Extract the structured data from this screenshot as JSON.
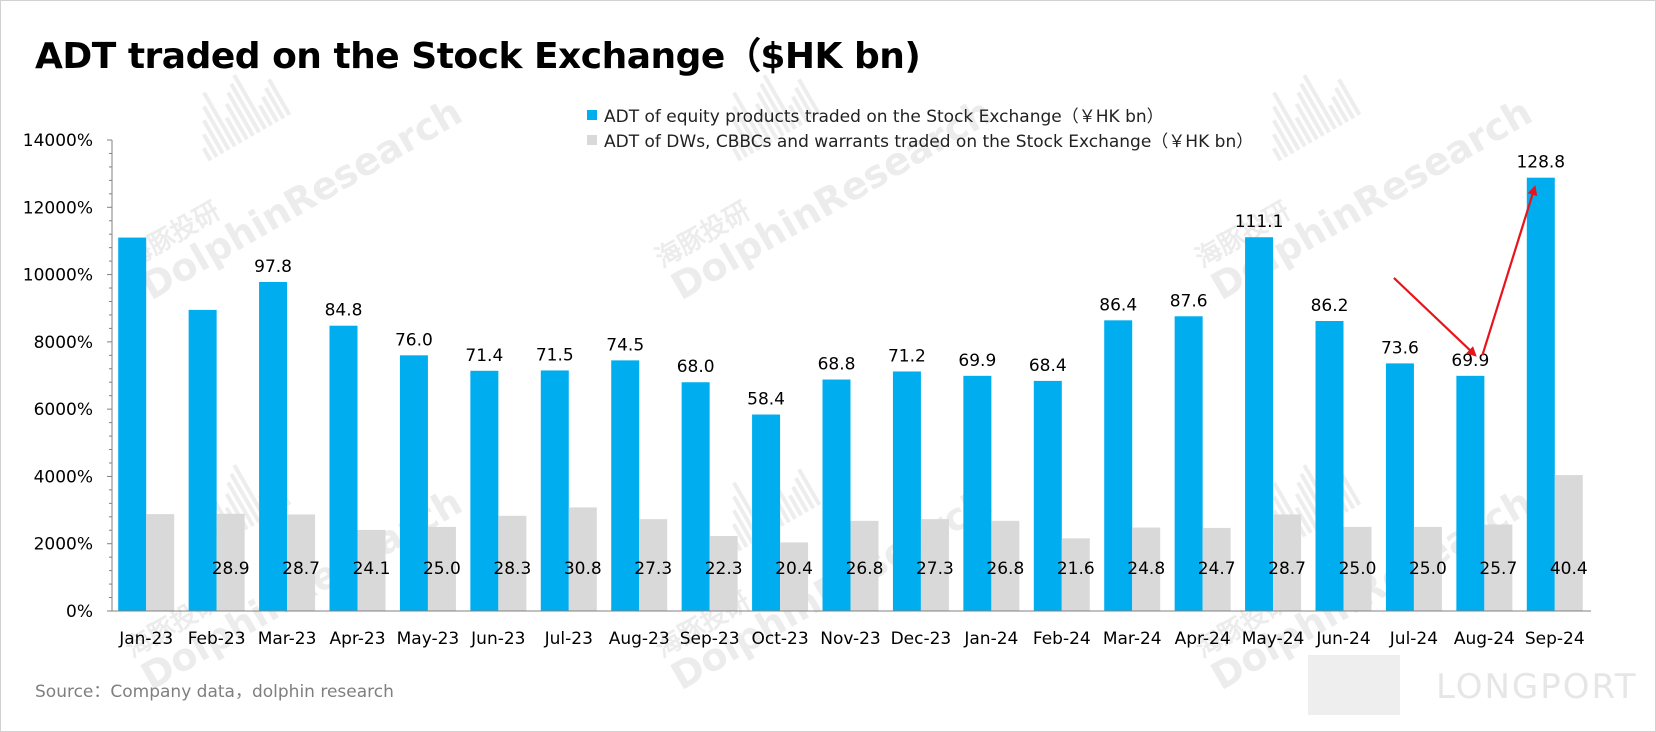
{
  "page_title": "ADT traded on the Stock Exchange（$HK bn)",
  "legend": [
    {
      "label": "ADT of equity products traded on the Stock Exchange（￥HK bn）",
      "color": "#00aeef"
    },
    {
      "label": "ADT of DWs, CBBCs and warrants traded on the Stock Exchange（￥HK bn）",
      "color": "#d9d9d9"
    }
  ],
  "source": "Source：Company data，dolphin research",
  "brand": "LONGPORT",
  "watermark": {
    "cn": "海豚投研",
    "en": "DolphinResearch"
  },
  "colors": {
    "equity": "#00aeef",
    "derivatives": "#d9d9d9",
    "annotation": "#e8141c"
  },
  "chart_data": {
    "type": "bar",
    "title": "ADT traded on the Stock Exchange（$HK bn)",
    "categories": [
      "Jan-23",
      "Feb-23",
      "Mar-23",
      "Apr-23",
      "May-23",
      "Jun-23",
      "Jul-23",
      "Aug-23",
      "Sep-23",
      "Oct-23",
      "Nov-23",
      "Dec-23",
      "Jan-24",
      "Feb-24",
      "Mar-24",
      "Apr-24",
      "May-24",
      "Jun-24",
      "Jul-24",
      "Aug-24",
      "Sep-24"
    ],
    "yticks": [
      "0%",
      "2000%",
      "4000%",
      "6000%",
      "8000%",
      "10000%",
      "12000%",
      "14000%"
    ],
    "ylim": [
      0,
      140
    ],
    "grid": false,
    "legend_position": "top-center",
    "series": [
      {
        "name": "ADT of equity products traded on the Stock Exchange（￥HK bn）",
        "color": "#00aeef",
        "values": [
          111.0,
          89.5,
          97.8,
          84.8,
          76.0,
          71.4,
          71.5,
          74.5,
          68.0,
          58.4,
          68.8,
          71.2,
          69.9,
          68.4,
          86.4,
          87.6,
          111.1,
          86.2,
          73.6,
          69.9,
          128.8
        ],
        "labels": [
          "",
          "",
          "97.8",
          "84.8",
          "76.0",
          "71.4",
          "71.5",
          "74.5",
          "68.0",
          "58.4",
          "68.8",
          "71.2",
          "69.9",
          "68.4",
          "86.4",
          "87.6",
          "111.1",
          "86.2",
          "73.6",
          "69.9",
          "128.8"
        ]
      },
      {
        "name": "ADT of DWs, CBBCs and warrants traded on the Stock Exchange（￥HK bn）",
        "color": "#d9d9d9",
        "values": [
          28.8,
          28.9,
          28.7,
          24.1,
          25.0,
          28.3,
          30.8,
          27.3,
          22.3,
          20.4,
          26.8,
          27.3,
          26.8,
          21.6,
          24.8,
          24.7,
          28.7,
          25.0,
          25.0,
          25.7,
          40.4
        ],
        "labels": [
          "",
          "28.9",
          "28.7",
          "24.1",
          "25.0",
          "28.3",
          "30.8",
          "27.3",
          "22.3",
          "20.4",
          "26.8",
          "27.3",
          "26.8",
          "21.6",
          "24.8",
          "24.7",
          "28.7",
          "25.0",
          "25.0",
          "25.7",
          "40.4"
        ]
      }
    ],
    "annotation": {
      "type": "arrows",
      "color": "#e8141c",
      "segments": [
        {
          "from": {
            "x": "Jul-24",
            "y": 99.0
          },
          "to": {
            "x": "Aug-24",
            "y": 76.0
          }
        },
        {
          "from": {
            "x": "Aug-24",
            "y": 76.0
          },
          "to": {
            "x": "Sep-24",
            "y": 126.0
          }
        }
      ]
    }
  }
}
